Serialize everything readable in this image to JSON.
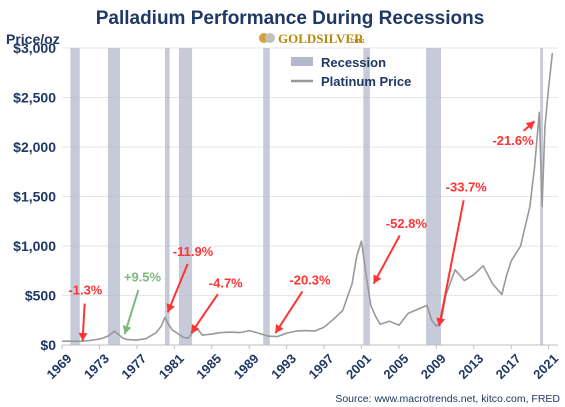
{
  "chart_data": {
    "type": "line",
    "title": "Palladium Performance During Recessions",
    "ylabel": "Price/oz",
    "xlim": [
      1969,
      2022
    ],
    "ylim": [
      0,
      3000
    ],
    "yticks": [
      0,
      500,
      1000,
      1500,
      2000,
      2500,
      3000
    ],
    "ytick_labels": [
      "$0",
      "$500",
      "$1,000",
      "$1,500",
      "$2,000",
      "$2,500",
      "$3,000"
    ],
    "xticks": [
      1969,
      1973,
      1977,
      1981,
      1985,
      1989,
      1993,
      1997,
      2001,
      2005,
      2009,
      2013,
      2017,
      2021
    ],
    "xtick_labels": [
      "1969",
      "1973",
      "1977",
      "1981",
      "1985",
      "1989",
      "1993",
      "1997",
      "2001",
      "2005",
      "2009",
      "2013",
      "2017",
      "2021"
    ],
    "grid": true,
    "legend_position": "top-center",
    "series": [
      {
        "name": "Platinum Price",
        "color": "#999999",
        "x": [
          1969.0,
          1970.0,
          1971.0,
          1972.0,
          1973.0,
          1973.5,
          1974.0,
          1974.6,
          1975.0,
          1975.5,
          1976.0,
          1977.0,
          1978.0,
          1979.0,
          1979.6,
          1980.0,
          1980.3,
          1980.8,
          1981.3,
          1982.0,
          1982.5,
          1983.0,
          1983.5,
          1984.0,
          1985.0,
          1986.0,
          1987.0,
          1988.0,
          1989.0,
          1990.0,
          1991.0,
          1992.0,
          1993.0,
          1994.0,
          1995.0,
          1996.0,
          1997.0,
          1998.0,
          1999.0,
          2000.0,
          2000.5,
          2001.0,
          2001.5,
          2002.0,
          2002.5,
          2003.0,
          2004.0,
          2005.0,
          2006.0,
          2007.0,
          2008.0,
          2008.5,
          2009.0,
          2009.5,
          2010.0,
          2011.0,
          2012.0,
          2013.0,
          2014.0,
          2015.0,
          2016.0,
          2016.5,
          2017.0,
          2018.0,
          2019.0,
          2019.5,
          2020.0,
          2020.3,
          2020.6,
          2021.0,
          2021.4
        ],
        "values": [
          38,
          38,
          37,
          45,
          60,
          75,
          95,
          140,
          110,
          70,
          55,
          50,
          65,
          120,
          190,
          280,
          220,
          150,
          120,
          75,
          70,
          130,
          160,
          100,
          110,
          125,
          130,
          125,
          145,
          120,
          90,
          85,
          120,
          140,
          145,
          140,
          180,
          260,
          350,
          620,
          900,
          1050,
          700,
          400,
          290,
          210,
          240,
          200,
          320,
          360,
          400,
          250,
          190,
          230,
          500,
          760,
          650,
          710,
          800,
          620,
          510,
          700,
          850,
          1000,
          1400,
          1800,
          2350,
          1400,
          2200,
          2600,
          2950
        ]
      }
    ],
    "recessions": [
      {
        "start": 1969.9,
        "end": 1970.9
      },
      {
        "start": 1973.9,
        "end": 1975.2
      },
      {
        "start": 1980.0,
        "end": 1980.5
      },
      {
        "start": 1981.5,
        "end": 1982.9
      },
      {
        "start": 1990.5,
        "end": 1991.2
      },
      {
        "start": 2001.2,
        "end": 2001.9
      },
      {
        "start": 2007.9,
        "end": 2009.5
      },
      {
        "start": 2020.1,
        "end": 2020.4
      }
    ],
    "legend": [
      {
        "label": "Recession",
        "color": "#b4b8cc"
      },
      {
        "label": "Platinum Price",
        "color": "#999999"
      }
    ],
    "annotations": [
      {
        "text": "-1.3%",
        "color": "#ff3333",
        "label_x": 1971.5,
        "label_y": 560,
        "arrow_x": 1971.2,
        "arrow_y": 40
      },
      {
        "text": "+9.5%",
        "color": "#7fb77e",
        "label_x": 1977.6,
        "label_y": 690,
        "arrow_x": 1975.7,
        "arrow_y": 110
      },
      {
        "text": "-11.9%",
        "color": "#ff3333",
        "label_x": 1983.0,
        "label_y": 950,
        "arrow_x": 1980.3,
        "arrow_y": 330
      },
      {
        "text": "-4.7%",
        "color": "#ff3333",
        "label_x": 1986.5,
        "label_y": 630,
        "arrow_x": 1982.8,
        "arrow_y": 120
      },
      {
        "text": "-20.3%",
        "color": "#ff3333",
        "label_x": 1995.5,
        "label_y": 660,
        "arrow_x": 1991.8,
        "arrow_y": 120
      },
      {
        "text": "-52.8%",
        "color": "#ff3333",
        "label_x": 2005.8,
        "label_y": 1230,
        "arrow_x": 2002.3,
        "arrow_y": 620
      },
      {
        "text": "-33.7%",
        "color": "#ff3333",
        "label_x": 2012.2,
        "label_y": 1600,
        "arrow_x": 2009.3,
        "arrow_y": 190
      },
      {
        "text": "-21.6%",
        "color": "#ff3333",
        "label_x": 2017.2,
        "label_y": 2070,
        "arrow_x": 2019.5,
        "arrow_y": 2260
      }
    ],
    "source": "Source: www.macrotrends.net, kitco.com, FRED"
  },
  "logo": {
    "name": "GOLDSILVER",
    "suffix": ".com"
  }
}
